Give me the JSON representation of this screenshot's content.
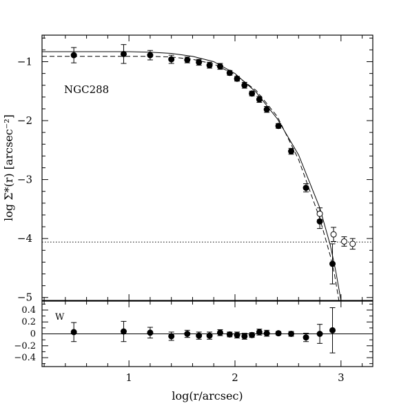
{
  "chart_data": [
    {
      "type": "scatter",
      "panel": "main",
      "label": "NGC288",
      "xlabel": "log(r/arcsec)",
      "ylabel": "log Σ*(r) [arcsec⁻²]",
      "xlim": [
        0.18,
        3.3
      ],
      "ylim": [
        -5.05,
        -0.55
      ],
      "xticks": [
        1,
        2,
        3
      ],
      "xticklabels": [
        "1",
        "2",
        "3"
      ],
      "yticks": [
        -1,
        -2,
        -3,
        -4,
        -5
      ],
      "yticklabels": [
        "−1",
        "−2",
        "−3",
        "−4",
        "−5"
      ],
      "background_level": -4.06,
      "series": [
        {
          "marker": "filled-circle",
          "x": [
            0.48,
            0.95,
            1.2,
            1.4,
            1.55,
            1.66,
            1.76,
            1.86,
            1.95,
            2.02,
            2.09,
            2.16,
            2.23,
            2.3,
            2.41,
            2.53,
            2.67,
            2.8,
            2.92
          ],
          "y": [
            -0.89,
            -0.87,
            -0.89,
            -0.96,
            -0.97,
            -1.01,
            -1.06,
            -1.08,
            -1.19,
            -1.29,
            -1.4,
            -1.54,
            -1.64,
            -1.81,
            -2.09,
            -2.52,
            -3.14,
            -3.71,
            -4.43
          ],
          "err": [
            0.13,
            0.16,
            0.08,
            0.07,
            0.05,
            0.05,
            0.05,
            0.05,
            0.04,
            0.04,
            0.05,
            0.04,
            0.05,
            0.05,
            0.04,
            0.05,
            0.07,
            0.12,
            0.34
          ]
        },
        {
          "marker": "open-circle",
          "x": [
            2.8,
            2.93,
            3.03,
            3.11
          ],
          "y": [
            -3.58,
            -3.93,
            -4.05,
            -4.09
          ],
          "err": [
            0.1,
            0.12,
            0.08,
            0.09
          ]
        }
      ],
      "curves": [
        {
          "style": "solid",
          "x": [
            0.18,
            0.5,
            1.0,
            1.2,
            1.4,
            1.6,
            1.8,
            2.0,
            2.2,
            2.4,
            2.6,
            2.8,
            2.9,
            2.95,
            3.0
          ],
          "y": [
            -0.83,
            -0.83,
            -0.83,
            -0.84,
            -0.86,
            -0.91,
            -1.0,
            -1.2,
            -1.52,
            -1.97,
            -2.58,
            -3.48,
            -4.12,
            -4.55,
            -5.05
          ]
        },
        {
          "style": "dashed",
          "x": [
            0.18,
            0.5,
            1.0,
            1.2,
            1.4,
            1.6,
            1.8,
            2.0,
            2.2,
            2.4,
            2.6,
            2.8,
            2.9,
            2.94,
            2.98
          ],
          "y": [
            -0.91,
            -0.91,
            -0.91,
            -0.91,
            -0.92,
            -0.96,
            -1.04,
            -1.22,
            -1.49,
            -1.93,
            -2.66,
            -3.66,
            -4.3,
            -4.62,
            -5.05
          ]
        }
      ]
    },
    {
      "type": "scatter",
      "panel": "residual",
      "label": "W",
      "xlabel": "log(r/arcsec)",
      "xlim": [
        0.18,
        3.3
      ],
      "ylim": [
        -0.55,
        0.55
      ],
      "yticks": [
        0.4,
        0.2,
        0,
        -0.2,
        -0.4
      ],
      "yticklabels": [
        "0.4",
        "0.2",
        "0",
        "−0.2",
        "−0.4"
      ],
      "zero_line": 0,
      "series": [
        {
          "marker": "filled-circle",
          "x": [
            0.48,
            0.95,
            1.2,
            1.4,
            1.55,
            1.66,
            1.76,
            1.86,
            1.95,
            2.02,
            2.09,
            2.16,
            2.23,
            2.3,
            2.41,
            2.53,
            2.67,
            2.8,
            2.92
          ],
          "y": [
            0.03,
            0.04,
            0.02,
            -0.04,
            0.0,
            -0.03,
            -0.03,
            0.02,
            -0.01,
            -0.02,
            -0.04,
            -0.02,
            0.03,
            0.01,
            0.01,
            0.0,
            -0.06,
            0.0,
            0.06
          ],
          "err": [
            0.16,
            0.17,
            0.09,
            0.07,
            0.06,
            0.06,
            0.06,
            0.05,
            0.04,
            0.05,
            0.05,
            0.04,
            0.05,
            0.05,
            0.03,
            0.04,
            0.07,
            0.16,
            0.38
          ]
        }
      ]
    }
  ]
}
